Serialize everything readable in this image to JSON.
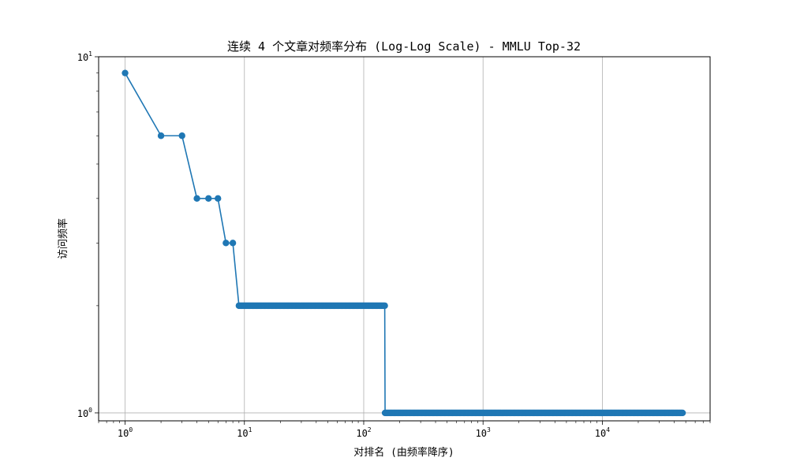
{
  "chart_data": {
    "type": "line",
    "title": "连续 4 个文章对频率分布 (Log-Log Scale) - MMLU Top-32",
    "xlabel": "对排名 (由频率降序)",
    "ylabel": "访问频率",
    "xscale": "log",
    "yscale": "log",
    "xlim": [
      0.6,
      80000
    ],
    "ylim": [
      0.95,
      10
    ],
    "grid": true,
    "legend": "none",
    "x_ticks": [
      {
        "value": 1,
        "label": "10",
        "sup": "0"
      },
      {
        "value": 10,
        "label": "10",
        "sup": "1"
      },
      {
        "value": 100,
        "label": "10",
        "sup": "2"
      },
      {
        "value": 1000,
        "label": "10",
        "sup": "3"
      },
      {
        "value": 10000,
        "label": "10",
        "sup": "4"
      }
    ],
    "y_ticks": [
      {
        "value": 1,
        "label": "10",
        "sup": "0"
      },
      {
        "value": 10,
        "label": "10",
        "sup": "1"
      }
    ],
    "colors": {
      "series": "#1f77b4",
      "grid": "#b0b0b0",
      "axes": "#000000"
    },
    "series": [
      {
        "name": "",
        "marker": "circle",
        "segments": [
          {
            "x": 1,
            "y": 9
          },
          {
            "x": 2,
            "y": 6
          },
          {
            "x": 3,
            "y": 6
          },
          {
            "x": 4,
            "y": 4
          },
          {
            "x": 5,
            "y": 4
          },
          {
            "x": 6,
            "y": 4
          },
          {
            "x": 7,
            "y": 3
          },
          {
            "x": 8,
            "y": 3
          },
          {
            "x_from": 9,
            "x_to": 150,
            "y": 2
          },
          {
            "x_from": 151,
            "x_to": 47000,
            "y": 1
          }
        ]
      }
    ]
  }
}
